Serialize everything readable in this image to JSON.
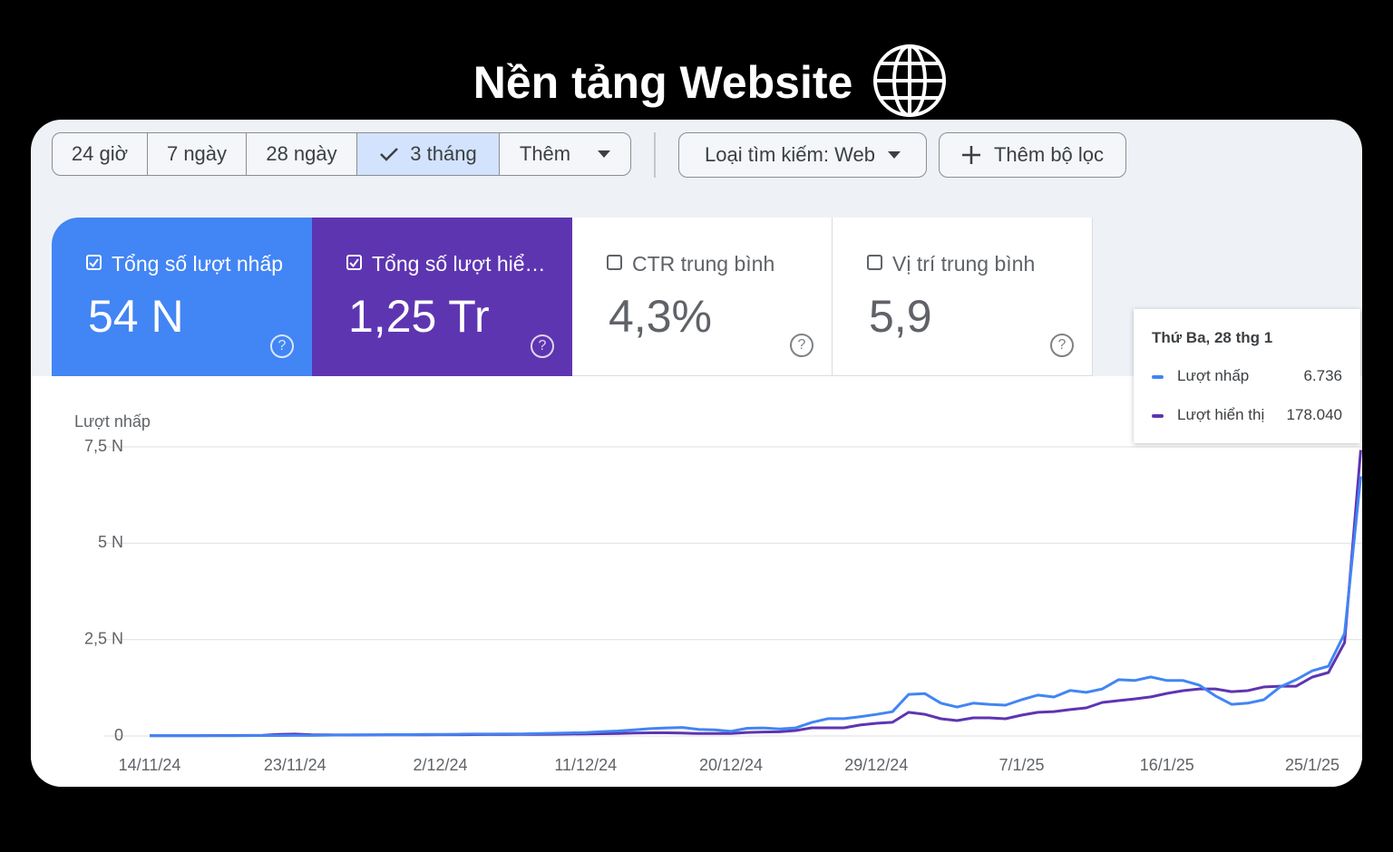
{
  "header": {
    "title": "Nền tảng Website"
  },
  "filters": {
    "ranges": [
      "24 giờ",
      "7 ngày",
      "28 ngày",
      "3 tháng",
      "Thêm"
    ],
    "selected": 3,
    "search_type": "Loại tìm kiếm: Web",
    "add_filter": "Thêm bộ lọc"
  },
  "metrics": [
    {
      "label": "Tổng số lượt nhấp",
      "value": "54 N",
      "checked": true,
      "color": "#4285f4"
    },
    {
      "label": "Tổng số lượt hiể…",
      "value": "1,25 Tr",
      "checked": true,
      "color": "#5e35b1"
    },
    {
      "label": "CTR trung bình",
      "value": "4,3%",
      "checked": false
    },
    {
      "label": "Vị trí trung bình",
      "value": "5,9",
      "checked": false
    }
  ],
  "chart_data": {
    "type": "line",
    "y_label": "Lượt nhấp",
    "categories": [
      "14/11/24",
      null,
      null,
      null,
      null,
      null,
      null,
      null,
      null,
      "23/11/24",
      null,
      null,
      null,
      null,
      null,
      null,
      null,
      null,
      "2/12/24",
      null,
      null,
      null,
      null,
      null,
      null,
      null,
      null,
      "11/12/24",
      null,
      null,
      null,
      null,
      null,
      null,
      null,
      null,
      "20/12/24",
      null,
      null,
      null,
      null,
      null,
      null,
      null,
      null,
      "29/12/24",
      null,
      null,
      null,
      null,
      null,
      null,
      null,
      null,
      "7/1/25",
      null,
      null,
      null,
      null,
      null,
      null,
      null,
      null,
      "16/1/25",
      null,
      null,
      null,
      null,
      null,
      null,
      null,
      null,
      "25/1/25",
      null,
      null,
      null
    ],
    "series": [
      {
        "name": "Lượt nhấp",
        "color": "#4285f4",
        "values": [
          5,
          5,
          6,
          6,
          8,
          8,
          10,
          12,
          12,
          15,
          15,
          20,
          25,
          30,
          30,
          35,
          35,
          40,
          40,
          45,
          50,
          50,
          55,
          55,
          60,
          70,
          80,
          90,
          110,
          130,
          160,
          190,
          210,
          220,
          170,
          160,
          120,
          200,
          210,
          180,
          210,
          350,
          450,
          450,
          500,
          560,
          630,
          1080,
          1100,
          850,
          750,
          850,
          820,
          800,
          940,
          1060,
          1010,
          1180,
          1130,
          1220,
          1460,
          1440,
          1530,
          1440,
          1440,
          1320,
          1040,
          820,
          850,
          940,
          1270,
          1460,
          1690,
          1810,
          2660,
          6736
        ]
      },
      {
        "name": "Lượt hiển thị",
        "color": "#5e35b1",
        "axis": "y2",
        "values": [
          200,
          200,
          250,
          250,
          300,
          300,
          350,
          400,
          1000,
          1200,
          800,
          700,
          600,
          600,
          650,
          700,
          700,
          750,
          800,
          800,
          850,
          900,
          900,
          950,
          1000,
          1100,
          1200,
          1300,
          1400,
          1500,
          1800,
          2000,
          2000,
          1800,
          1500,
          1600,
          1600,
          2200,
          2500,
          2600,
          3400,
          5100,
          5100,
          5100,
          6800,
          7900,
          8500,
          14700,
          13500,
          10700,
          9600,
          11300,
          11300,
          10700,
          13000,
          14700,
          15200,
          16400,
          17500,
          20900,
          22000,
          23100,
          24300,
          26500,
          28200,
          29300,
          29300,
          27600,
          28200,
          30500,
          31000,
          31000,
          36700,
          39500,
          58100,
          178040
        ]
      }
    ],
    "ylim": [
      0,
      7500
    ],
    "yticks": [
      0,
      {
        "value": 2500,
        "label": "2,5 N"
      },
      {
        "value": 5000,
        "label": "5 N"
      },
      {
        "value": 7500,
        "label": "7,5 N"
      }
    ],
    "y2lim": [
      0,
      180000
    ],
    "grid": true,
    "tooltip": {
      "title": "Thứ Ba, 28 thg 1",
      "labels": [
        "6.736",
        "178.040"
      ]
    }
  }
}
